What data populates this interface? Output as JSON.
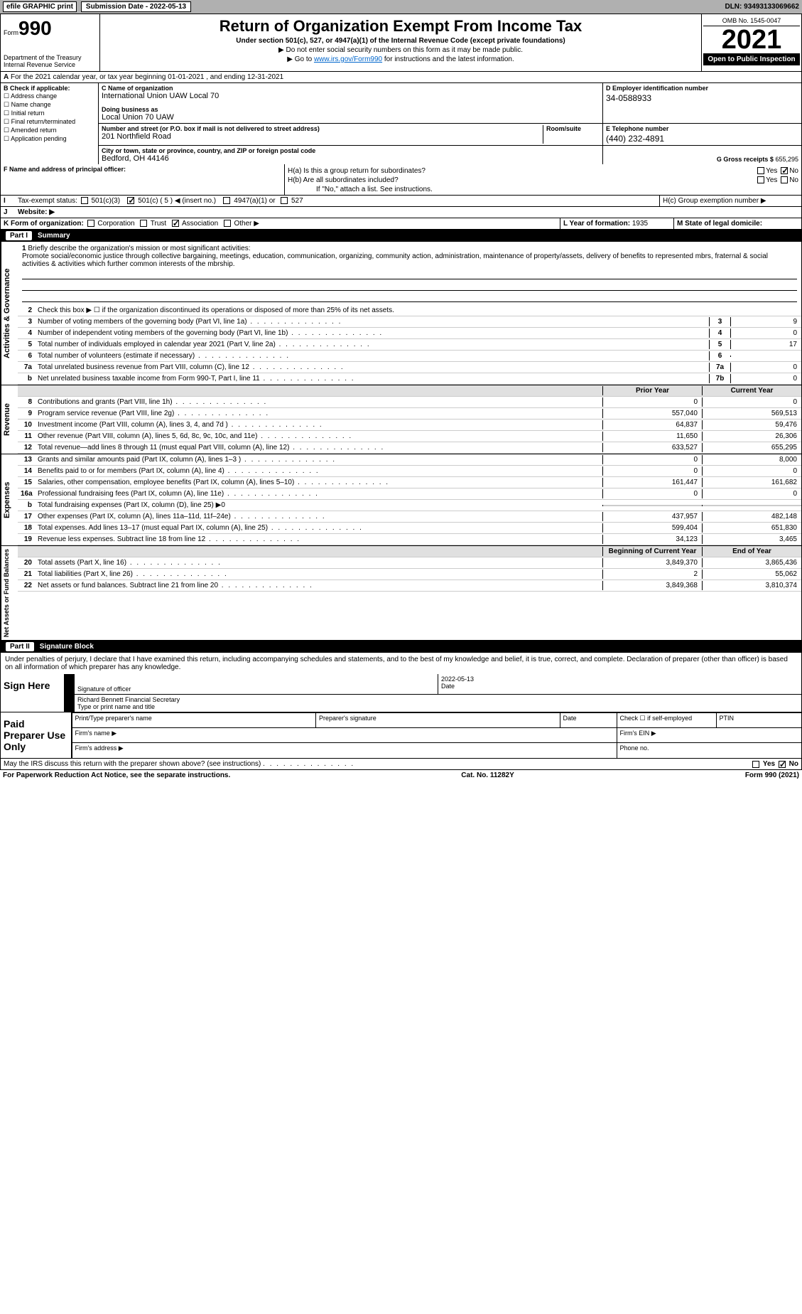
{
  "header": {
    "efile": "efile GRAPHIC print",
    "submission": "Submission Date - 2022-05-13",
    "dln": "DLN: 93493133069662"
  },
  "form": {
    "prefix": "Form",
    "number": "990",
    "dept1": "Department of the Treasury",
    "dept2": "Internal Revenue Service",
    "title": "Return of Organization Exempt From Income Tax",
    "subtitle": "Under section 501(c), 527, or 4947(a)(1) of the Internal Revenue Code (except private foundations)",
    "note1": "▶ Do not enter social security numbers on this form as it may be made public.",
    "note2_pre": "▶ Go to ",
    "note2_link": "www.irs.gov/Form990",
    "note2_post": " for instructions and the latest information.",
    "omb": "OMB No. 1545-0047",
    "year": "2021",
    "open": "Open to Public Inspection"
  },
  "rowA": "For the 2021 calendar year, or tax year beginning 01-01-2021   , and ending 12-31-2021",
  "boxB": {
    "title": "B Check if applicable:",
    "items": [
      "Address change",
      "Name change",
      "Initial return",
      "Final return/terminated",
      "Amended return",
      "Application pending"
    ]
  },
  "boxC": {
    "name_lbl": "C Name of organization",
    "name": "International Union UAW Local 70",
    "dba_lbl": "Doing business as",
    "dba": "Local Union 70 UAW",
    "addr_lbl": "Number and street (or P.O. box if mail is not delivered to street address)",
    "room_lbl": "Room/suite",
    "addr": "201 Northfield Road",
    "city_lbl": "City or town, state or province, country, and ZIP or foreign postal code",
    "city": "Bedford, OH  44146"
  },
  "boxD": {
    "lbl": "D Employer identification number",
    "val": "34-0588933"
  },
  "boxE": {
    "lbl": "E Telephone number",
    "val": "(440) 232-4891"
  },
  "boxG": {
    "lbl": "G Gross receipts $",
    "val": "655,295"
  },
  "boxF": "F  Name and address of principal officer:",
  "boxH": {
    "a": "H(a)  Is this a group return for subordinates?",
    "b": "H(b)  Are all subordinates included?",
    "b_note": "If \"No,\" attach a list. See instructions.",
    "c": "H(c)  Group exemption number ▶",
    "yes": "Yes",
    "no": "No"
  },
  "boxI": {
    "lbl": "Tax-exempt status:",
    "o501c3": "501(c)(3)",
    "o501c": "501(c) ( 5 ) ◀ (insert no.)",
    "o4947": "4947(a)(1) or",
    "o527": "527"
  },
  "boxJ": "Website: ▶",
  "boxK": {
    "lbl": "K Form of organization:",
    "corp": "Corporation",
    "trust": "Trust",
    "assoc": "Association",
    "other": "Other ▶"
  },
  "boxL": {
    "lbl": "L Year of formation:",
    "val": "1935"
  },
  "boxM": "M State of legal domicile:",
  "part1": {
    "title": "Part I",
    "name": "Summary",
    "q1": "Briefly describe the organization's mission or most significant activities:",
    "mission": "Promote social/economic justice through collective bargaining, meetings, education, communication, organizing, community action, administration, maintenance of property/assets, delivery of benefits to represented mbrs, fraternal & social activities & activities which further common interests of the mbrship.",
    "q2": "Check this box ▶ ☐  if the organization discontinued its operations or disposed of more than 25% of its net assets.",
    "lines_gov": [
      {
        "n": "3",
        "d": "Number of voting members of the governing body (Part VI, line 1a)",
        "box": "3",
        "v": "9"
      },
      {
        "n": "4",
        "d": "Number of independent voting members of the governing body (Part VI, line 1b)",
        "box": "4",
        "v": "0"
      },
      {
        "n": "5",
        "d": "Total number of individuals employed in calendar year 2021 (Part V, line 2a)",
        "box": "5",
        "v": "17"
      },
      {
        "n": "6",
        "d": "Total number of volunteers (estimate if necessary)",
        "box": "6",
        "v": ""
      },
      {
        "n": "7a",
        "d": "Total unrelated business revenue from Part VIII, column (C), line 12",
        "box": "7a",
        "v": "0"
      },
      {
        "n": "b",
        "d": "Net unrelated business taxable income from Form 990-T, Part I, line 11",
        "box": "7b",
        "v": "0"
      }
    ],
    "hdr_prior": "Prior Year",
    "hdr_curr": "Current Year",
    "lines_rev": [
      {
        "n": "8",
        "d": "Contributions and grants (Part VIII, line 1h)",
        "p": "0",
        "c": "0"
      },
      {
        "n": "9",
        "d": "Program service revenue (Part VIII, line 2g)",
        "p": "557,040",
        "c": "569,513"
      },
      {
        "n": "10",
        "d": "Investment income (Part VIII, column (A), lines 3, 4, and 7d )",
        "p": "64,837",
        "c": "59,476"
      },
      {
        "n": "11",
        "d": "Other revenue (Part VIII, column (A), lines 5, 6d, 8c, 9c, 10c, and 11e)",
        "p": "11,650",
        "c": "26,306"
      },
      {
        "n": "12",
        "d": "Total revenue—add lines 8 through 11 (must equal Part VIII, column (A), line 12)",
        "p": "633,527",
        "c": "655,295"
      }
    ],
    "lines_exp": [
      {
        "n": "13",
        "d": "Grants and similar amounts paid (Part IX, column (A), lines 1–3 )",
        "p": "0",
        "c": "8,000"
      },
      {
        "n": "14",
        "d": "Benefits paid to or for members (Part IX, column (A), line 4)",
        "p": "0",
        "c": "0"
      },
      {
        "n": "15",
        "d": "Salaries, other compensation, employee benefits (Part IX, column (A), lines 5–10)",
        "p": "161,447",
        "c": "161,682"
      },
      {
        "n": "16a",
        "d": "Professional fundraising fees (Part IX, column (A), line 11e)",
        "p": "0",
        "c": "0"
      },
      {
        "n": "b",
        "d": "Total fundraising expenses (Part IX, column (D), line 25) ▶0",
        "p": "",
        "c": "",
        "single": true
      },
      {
        "n": "17",
        "d": "Other expenses (Part IX, column (A), lines 11a–11d, 11f–24e)",
        "p": "437,957",
        "c": "482,148"
      },
      {
        "n": "18",
        "d": "Total expenses. Add lines 13–17 (must equal Part IX, column (A), line 25)",
        "p": "599,404",
        "c": "651,830"
      },
      {
        "n": "19",
        "d": "Revenue less expenses. Subtract line 18 from line 12",
        "p": "34,123",
        "c": "3,465"
      }
    ],
    "hdr_begin": "Beginning of Current Year",
    "hdr_end": "End of Year",
    "lines_net": [
      {
        "n": "20",
        "d": "Total assets (Part X, line 16)",
        "p": "3,849,370",
        "c": "3,865,436"
      },
      {
        "n": "21",
        "d": "Total liabilities (Part X, line 26)",
        "p": "2",
        "c": "55,062"
      },
      {
        "n": "22",
        "d": "Net assets or fund balances. Subtract line 21 from line 20",
        "p": "3,849,368",
        "c": "3,810,374"
      }
    ],
    "tab_gov": "Activities & Governance",
    "tab_rev": "Revenue",
    "tab_exp": "Expenses",
    "tab_net": "Net Assets or Fund Balances"
  },
  "part2": {
    "title": "Part II",
    "name": "Signature Block",
    "penalty": "Under penalties of perjury, I declare that I have examined this return, including accompanying schedules and statements, and to the best of my knowledge and belief, it is true, correct, and complete. Declaration of preparer (other than officer) is based on all information of which preparer has any knowledge.",
    "sign_here": "Sign Here",
    "sig_officer": "Signature of officer",
    "date": "Date",
    "sig_date": "2022-05-13",
    "name_title": "Richard Bennett Financial Secretary",
    "type_name": "Type or print name and title",
    "paid": "Paid Preparer Use Only",
    "prep_name": "Print/Type preparer's name",
    "prep_sig": "Preparer's signature",
    "prep_date": "Date",
    "prep_chk": "Check ☐ if self-employed",
    "ptin": "PTIN",
    "firm_name": "Firm's name   ▶",
    "firm_ein": "Firm's EIN ▶",
    "firm_addr": "Firm's address ▶",
    "phone": "Phone no.",
    "may_discuss": "May the IRS discuss this return with the preparer shown above? (see instructions)"
  },
  "footer": {
    "paperwork": "For Paperwork Reduction Act Notice, see the separate instructions.",
    "cat": "Cat. No. 11282Y",
    "form": "Form 990 (2021)"
  }
}
